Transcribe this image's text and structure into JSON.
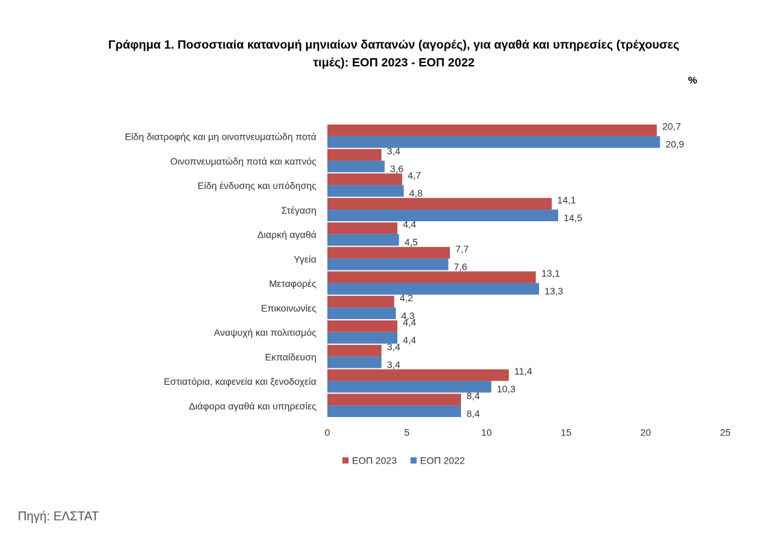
{
  "chart_data": {
    "type": "hbar",
    "title": "Γράφημα 1. Ποσοστιαία κατανομή μηνιαίων δαπανών (αγορές), για αγαθά και υπηρεσίες (τρέχουσες τιμές): ΕΟΠ 2023 - ΕΟΠ 2022",
    "unit": "%",
    "categories": [
      "Είδη διατροφής και μη οινοπνευματώδη ποτά",
      "Οινοπνευματώδη ποτά και καπνός",
      "Είδη ένδυσης και υπόδησης",
      "Στέγαση",
      "Διαρκή αγαθά",
      "Υγεία",
      "Μεταφορές",
      "Επικοινωνίες",
      "Αναψυχή και πολιτισμός",
      "Εκπαίδευση",
      "Εστιατόρια, καφενεία  και ξενοδοχεία",
      "Διάφορα αγαθά και υπηρεσίες"
    ],
    "series": [
      {
        "name": "ΕΟΠ 2023",
        "color": "#c0504d",
        "values": [
          20.7,
          3.4,
          4.7,
          14.1,
          4.4,
          7.7,
          13.1,
          4.2,
          4.4,
          3.4,
          11.4,
          8.4
        ],
        "value_labels": [
          "20,7",
          "3,4",
          "4,7",
          "14,1",
          "4,4",
          "7,7",
          "13,1",
          "4,2",
          "4,4",
          "3,4",
          "11,4",
          "8,4"
        ]
      },
      {
        "name": "ΕΟΠ 2022",
        "color": "#4f81bd",
        "values": [
          20.9,
          3.6,
          4.8,
          14.5,
          4.5,
          7.6,
          13.3,
          4.3,
          4.4,
          3.4,
          10.3,
          8.4
        ],
        "value_labels": [
          "20,9",
          "3,6",
          "4,8",
          "14,5",
          "4,5",
          "7,6",
          "13,3",
          "4,3",
          "4,4",
          "3,4",
          "10,3",
          "8,4"
        ]
      }
    ],
    "xlim": [
      0,
      25
    ],
    "xticks": [
      0,
      5,
      10,
      15,
      20,
      25
    ],
    "grid": false,
    "legend": "bottom"
  },
  "source": "Πηγή: ΕΛΣΤΑΤ"
}
